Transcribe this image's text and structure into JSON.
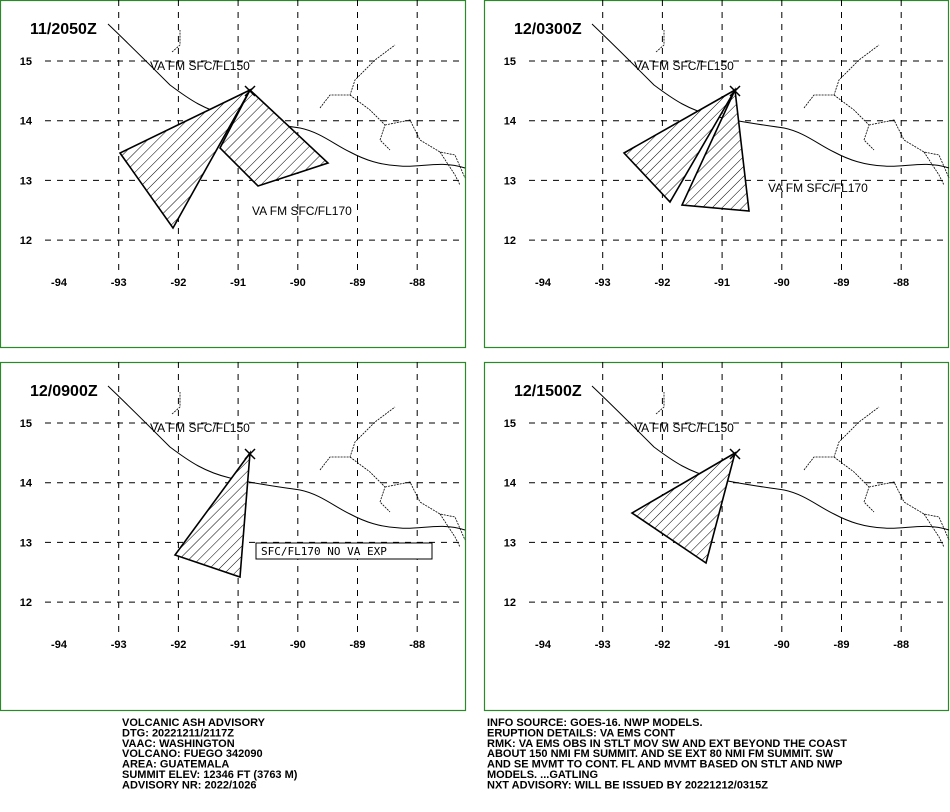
{
  "panels": [
    {
      "title": "11/2050Z",
      "labels": [
        "VA FM SFC/FL150",
        "VA FM SFC/FL170"
      ],
      "lat_ticks": [
        15,
        14,
        13,
        12
      ],
      "lon_ticks": [
        -94,
        -93,
        -92,
        -91,
        -90,
        -89,
        -88
      ]
    },
    {
      "title": "12/0300Z",
      "labels": [
        "VA FM SFC/FL150",
        "VA FM SFC/FL170"
      ],
      "lat_ticks": [
        15,
        14,
        13,
        12
      ],
      "lon_ticks": [
        -94,
        -93,
        -92,
        -91,
        -90,
        -89,
        -88
      ]
    },
    {
      "title": "12/0900Z",
      "labels": [
        "VA FM SFC/FL150",
        "SFC/FL170 NO VA EXP"
      ],
      "lat_ticks": [
        15,
        14,
        13,
        12
      ],
      "lon_ticks": [
        -94,
        -93,
        -92,
        -91,
        -90,
        -89,
        -88
      ]
    },
    {
      "title": "12/1500Z",
      "labels": [
        "VA FM SFC/FL150"
      ],
      "lat_ticks": [
        15,
        14,
        13,
        12
      ],
      "lon_ticks": [
        -94,
        -93,
        -92,
        -91,
        -90,
        -89,
        -88
      ]
    }
  ],
  "advisory_left": [
    "VOLCANIC ASH ADVISORY",
    "DTG: 20221211/2117Z",
    "VAAC: WASHINGTON",
    "VOLCANO: FUEGO 342090",
    "AREA: GUATEMALA",
    "SUMMIT ELEV: 12346 FT (3763 M)",
    "ADVISORY NR: 2022/1026"
  ],
  "advisory_right": [
    "INFO SOURCE: GOES-16. NWP MODELS.",
    "ERUPTION DETAILS: VA EMS CONT",
    "RMK: VA EMS OBS IN STLT MOV SW AND EXT BEYOND THE COAST",
    "ABOUT 150 NMI FM SUMMIT. AND SE EXT 80 NMI FM SUMMIT. SW",
    "AND SE MVMT TO CONT. FL AND MVMT BASED ON STLT AND NWP",
    "MODELS. ...GATLING",
    "NXT ADVISORY: WILL BE ISSUED BY 20221212/0315Z"
  ]
}
